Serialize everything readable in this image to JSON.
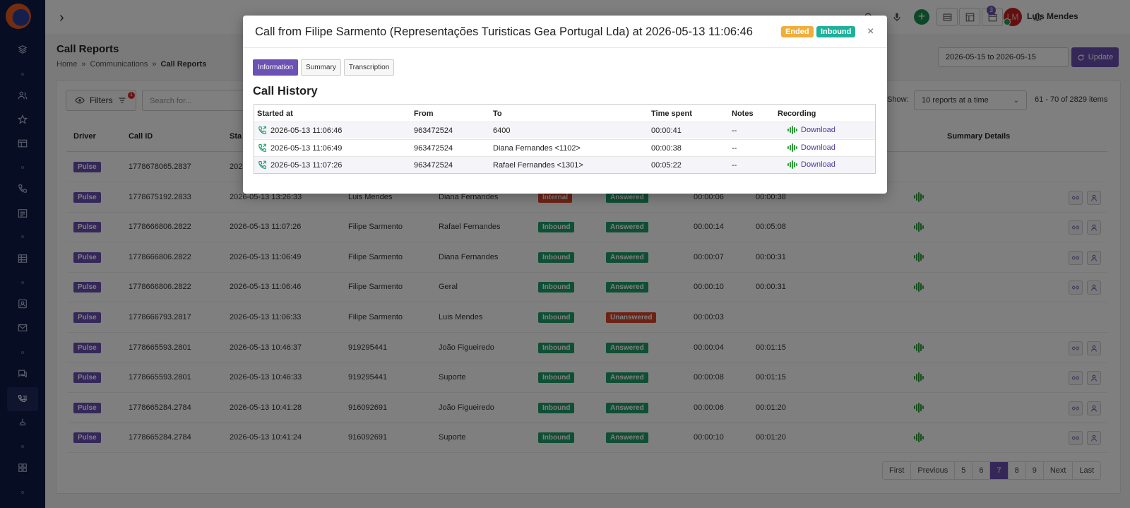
{
  "topbar": {
    "user_name": "Luis Mendes",
    "avatar_initials": "LM",
    "notifications_count": "3"
  },
  "page": {
    "title": "Call Reports",
    "breadcrumb": [
      "Home",
      "»",
      "Communications",
      "»",
      "Call Reports"
    ],
    "date_range": "2026-05-15 to 2026-05-15",
    "update_label": "Update"
  },
  "toolbar": {
    "filters_label": "Filters",
    "filters_count": "1",
    "search_placeholder": "Search for...",
    "show_label": "Show:",
    "show_value": "10 reports at a time",
    "items_count": "61 - 70 of 2829 items"
  },
  "table": {
    "headers": {
      "driver": "Driver",
      "call_id": "Call ID",
      "started": "Sta",
      "summary_details": "Summary Details"
    },
    "rows": [
      {
        "driver": "Pulse",
        "call_id": "1778678065.2837",
        "started": "202",
        "from": "",
        "to": "",
        "direction": "",
        "status": "",
        "wait": "",
        "duration": "",
        "has_recording": false,
        "has_actions": false
      },
      {
        "driver": "Pulse",
        "call_id": "1778675192.2833",
        "started": "2026-05-13 13:26:33",
        "from": "Luis Mendes",
        "to": "Diana Fernandes",
        "direction": "Internal",
        "status": "Answered",
        "wait": "00:00:06",
        "duration": "00:00:38",
        "has_recording": true,
        "has_actions": true
      },
      {
        "driver": "Pulse",
        "call_id": "1778666806.2822",
        "started": "2026-05-13 11:07:26",
        "from": "Filipe Sarmento",
        "to": "Rafael Fernandes",
        "direction": "Inbound",
        "status": "Answered",
        "wait": "00:00:14",
        "duration": "00:05:08",
        "has_recording": true,
        "has_actions": true
      },
      {
        "driver": "Pulse",
        "call_id": "1778666806.2822",
        "started": "2026-05-13 11:06:49",
        "from": "Filipe Sarmento",
        "to": "Diana Fernandes",
        "direction": "Inbound",
        "status": "Answered",
        "wait": "00:00:07",
        "duration": "00:00:31",
        "has_recording": true,
        "has_actions": true
      },
      {
        "driver": "Pulse",
        "call_id": "1778666806.2822",
        "started": "2026-05-13 11:06:46",
        "from": "Filipe Sarmento",
        "to": "Geral",
        "direction": "Inbound",
        "status": "Answered",
        "wait": "00:00:10",
        "duration": "00:00:31",
        "has_recording": true,
        "has_actions": true
      },
      {
        "driver": "Pulse",
        "call_id": "1778666793.2817",
        "started": "2026-05-13 11:06:33",
        "from": "Filipe Sarmento",
        "to": "Luis Mendes",
        "direction": "Inbound",
        "status": "Unanswered",
        "wait": "00:00:03",
        "duration": "",
        "has_recording": false,
        "has_actions": false
      },
      {
        "driver": "Pulse",
        "call_id": "1778665593.2801",
        "started": "2026-05-13 10:46:37",
        "from": "919295441",
        "to": "João Figueiredo",
        "direction": "Inbound",
        "status": "Answered",
        "wait": "00:00:04",
        "duration": "00:01:15",
        "has_recording": true,
        "has_actions": true
      },
      {
        "driver": "Pulse",
        "call_id": "1778665593.2801",
        "started": "2026-05-13 10:46:33",
        "from": "919295441",
        "to": "Suporte",
        "direction": "Inbound",
        "status": "Answered",
        "wait": "00:00:08",
        "duration": "00:01:15",
        "has_recording": true,
        "has_actions": true
      },
      {
        "driver": "Pulse",
        "call_id": "1778665284.2784",
        "started": "2026-05-13 10:41:28",
        "from": "916092691",
        "to": "João Figueiredo",
        "direction": "Inbound",
        "status": "Answered",
        "wait": "00:00:06",
        "duration": "00:01:20",
        "has_recording": true,
        "has_actions": true
      },
      {
        "driver": "Pulse",
        "call_id": "1778665284.2784",
        "started": "2026-05-13 10:41:24",
        "from": "916092691",
        "to": "Suporte",
        "direction": "Inbound",
        "status": "Answered",
        "wait": "00:00:10",
        "duration": "00:01:20",
        "has_recording": true,
        "has_actions": true
      }
    ]
  },
  "pagination": [
    "First",
    "Previous",
    "5",
    "6",
    "7",
    "8",
    "9",
    "Next",
    "Last"
  ],
  "pagination_active": "7",
  "modal": {
    "title": "Call from Filipe Sarmento (Representações Turisticas Gea Portugal Lda) at 2026-05-13 11:06:46",
    "badge_ended": "Ended",
    "badge_inbound": "Inbound",
    "close": "×",
    "tabs": [
      "Information",
      "Summary",
      "Transcription"
    ],
    "section_title": "Call History",
    "headers": [
      "Started at",
      "From",
      "To",
      "Time spent",
      "Notes",
      "Recording"
    ],
    "rows": [
      {
        "started": "2026-05-13 11:06:46",
        "from": "963472524",
        "to": "6400",
        "time": "00:00:41",
        "notes": "--",
        "recording": "Download"
      },
      {
        "started": "2026-05-13 11:06:49",
        "from": "963472524",
        "to": "Diana Fernandes <1102>",
        "time": "00:00:38",
        "notes": "--",
        "recording": "Download"
      },
      {
        "started": "2026-05-13 11:07:26",
        "from": "963472524",
        "to": "Rafael Fernandes <1301>",
        "time": "00:05:22",
        "notes": "--",
        "recording": "Download"
      }
    ]
  },
  "colors": {
    "accent": "#6b51b3",
    "green": "#1e9e6a",
    "red": "#d9462b",
    "sidebar": "#0f1a45",
    "ended": "#f0ad3a"
  }
}
